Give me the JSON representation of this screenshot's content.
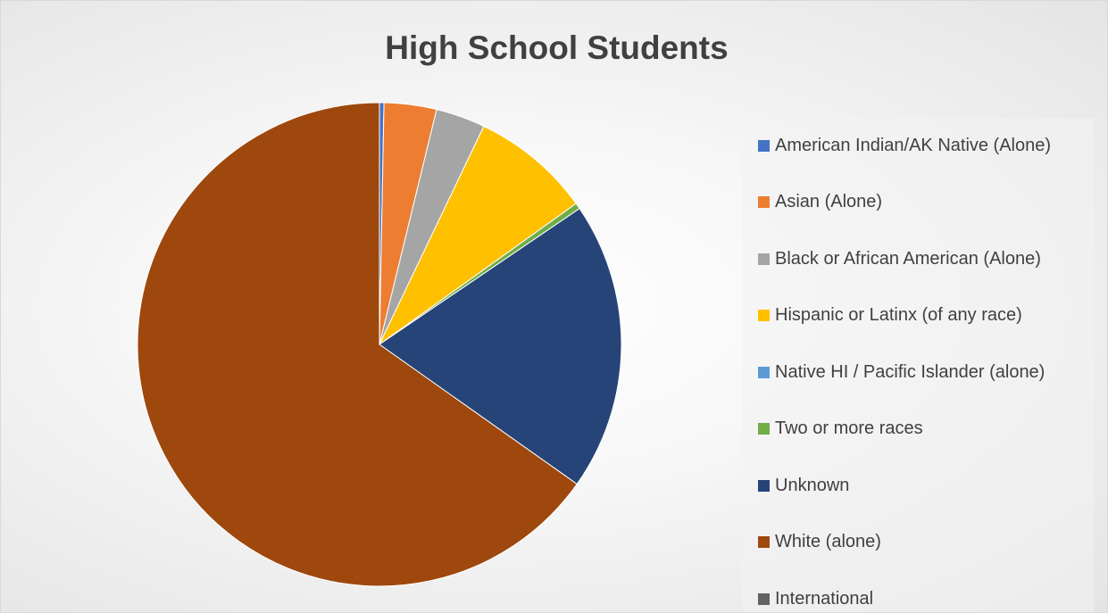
{
  "chart_data": {
    "type": "pie",
    "title": "High School Students",
    "legend_position": "right",
    "slices": [
      {
        "label": "American Indian/AK Native (Alone)",
        "value": 0.3,
        "color": "#4472c4"
      },
      {
        "label": "Asian (Alone)",
        "value": 3.5,
        "color": "#ed7d31"
      },
      {
        "label": "Black or African American (Alone)",
        "value": 3.3,
        "color": "#a5a5a5"
      },
      {
        "label": "Hispanic or Latinx (of any race)",
        "value": 8.0,
        "color": "#ffc000"
      },
      {
        "label": "Native HI / Pacific Islander (alone)",
        "value": 0.0,
        "color": "#5b9bd5"
      },
      {
        "label": "Two or more races",
        "value": 0.4,
        "color": "#70ad47"
      },
      {
        "label": "Unknown",
        "value": 19.3,
        "color": "#264478"
      },
      {
        "label": "White (alone)",
        "value": 65.2,
        "color": "#9e480e"
      },
      {
        "label": "International",
        "value": 0.0,
        "color": "#636363"
      }
    ]
  }
}
